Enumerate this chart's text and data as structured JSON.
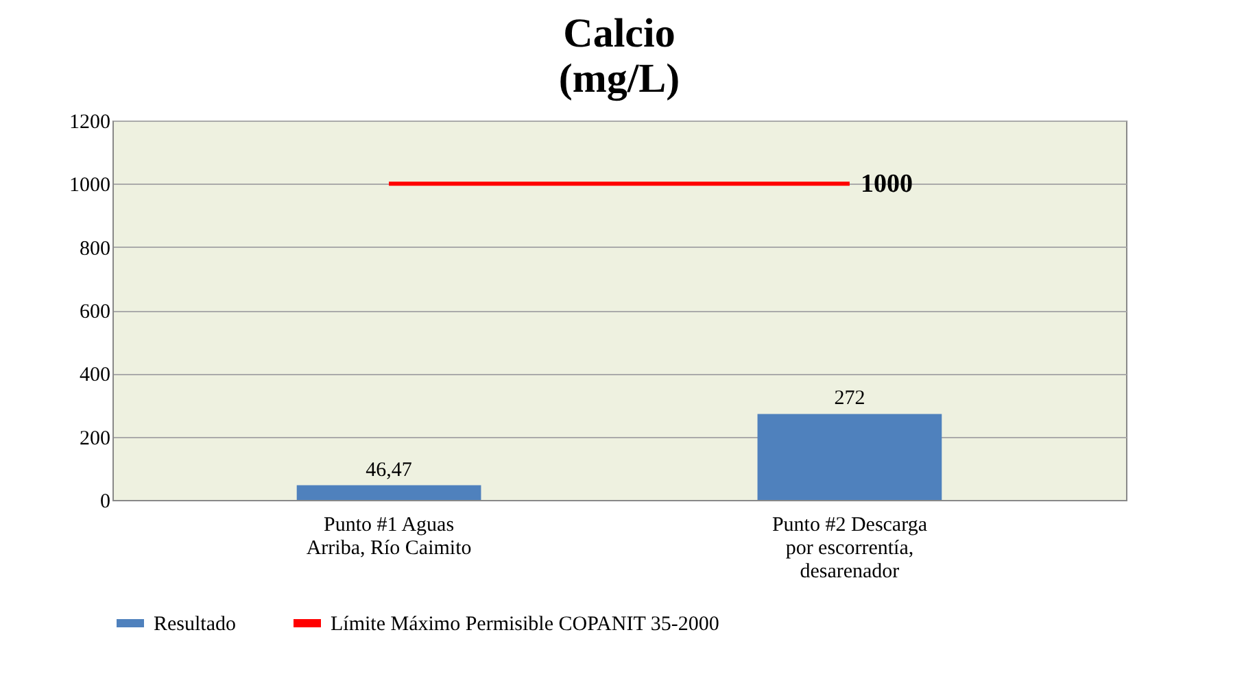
{
  "chart_data": {
    "type": "bar",
    "title": "Calcio",
    "subtitle": "(mg/L)",
    "categories": [
      "Punto #1 Aguas Arriba, Río Caimito",
      "Punto #2 Descarga por escorrentía, desarenador"
    ],
    "series": [
      {
        "name": "Resultado",
        "color": "#4f81bd",
        "values": [
          46.47,
          272
        ],
        "value_labels": [
          "46,47",
          "272"
        ]
      },
      {
        "name": "Límite Máximo Permisible COPANIT 35-2000",
        "type": "line",
        "color": "#ff0000",
        "values": [
          1000,
          1000
        ]
      }
    ],
    "annotations": [
      {
        "text": "1000",
        "x": "Punto #2 Descarga por escorrentía, desarenador",
        "y": 1000
      }
    ],
    "ylim": [
      0,
      1200
    ],
    "yticks": [
      0,
      200,
      400,
      600,
      800,
      1000,
      1200
    ],
    "grid": "y",
    "legend": "bottom"
  }
}
